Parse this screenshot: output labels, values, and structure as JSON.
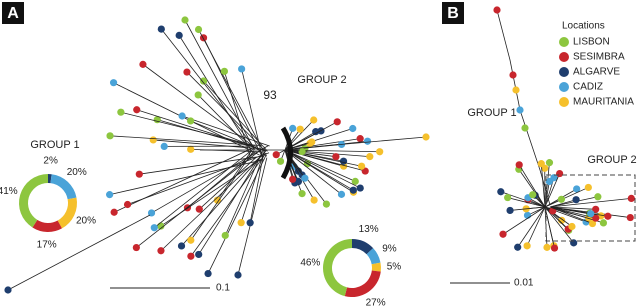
{
  "panel_a": {
    "label": "A",
    "group1_label": "GROUP 1",
    "group2_label": "GROUP 2",
    "bootstrap_label": "93",
    "scale_label": "0.1",
    "donuts": [
      {
        "values": [
          2,
          20,
          20,
          17,
          41
        ],
        "value_labels": [
          "2%",
          "20%",
          "20%",
          "17%",
          "41%"
        ],
        "colors": [
          "#1f3e6e",
          "#4aa3d8",
          "#f5c02c",
          "#c8262d",
          "#8dc63f"
        ]
      },
      {
        "values": [
          13,
          9,
          5,
          27,
          46
        ],
        "value_labels": [
          "13%",
          "9%",
          "5%",
          "27%",
          "46%"
        ],
        "colors": [
          "#1f3e6e",
          "#4aa3d8",
          "#f5c02c",
          "#c8262d",
          "#8dc63f"
        ]
      }
    ]
  },
  "panel_b": {
    "label": "B",
    "group1_label": "GROUP 1",
    "group2_label": "GROUP 2",
    "scale_label": "0.01"
  },
  "legend": {
    "title": "Locations",
    "entries": [
      {
        "name": "LISBON",
        "color": "#8dc63f"
      },
      {
        "name": "SESIMBRA",
        "color": "#c8262d"
      },
      {
        "name": "ALGARVE",
        "color": "#1f3e6e"
      },
      {
        "name": "CADIZ",
        "color": "#4aa3d8"
      },
      {
        "name": "MAURITANIA",
        "color": "#f5c02c"
      }
    ]
  }
}
